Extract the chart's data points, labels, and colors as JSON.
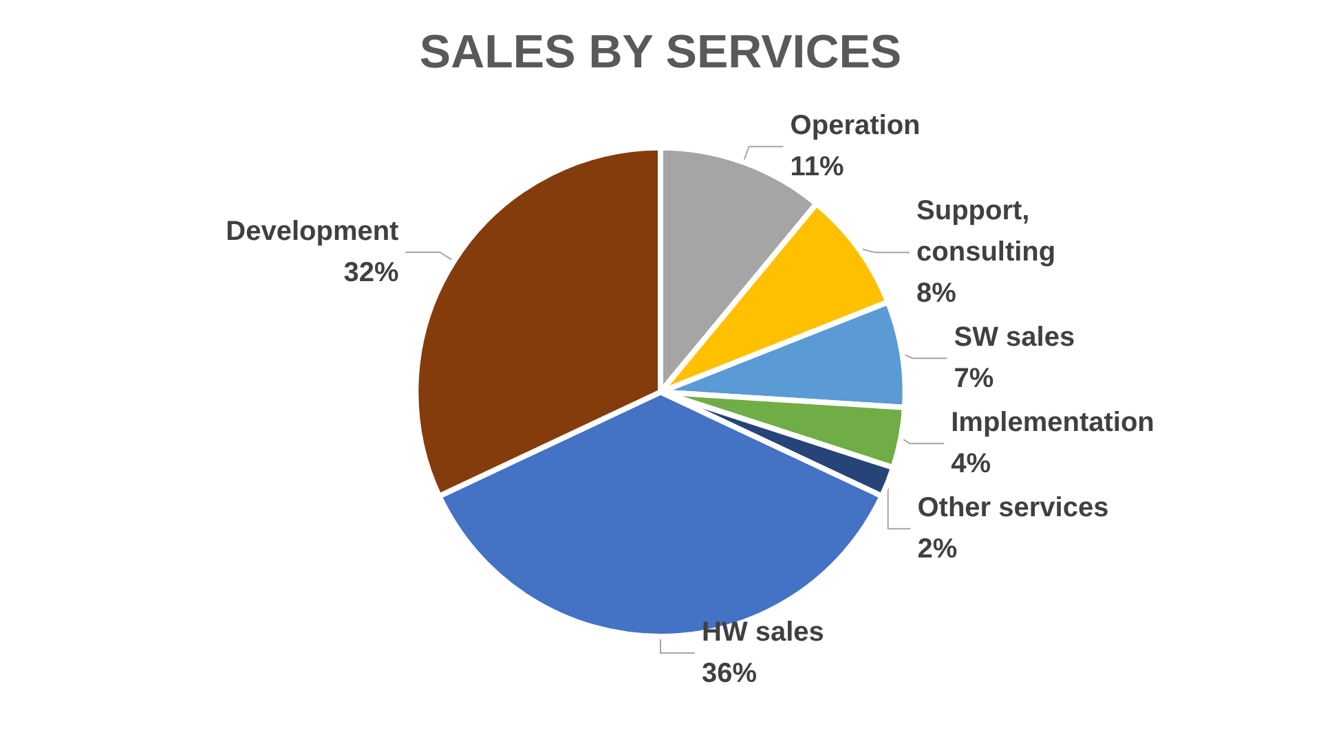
{
  "chart_data": {
    "type": "pie",
    "title": "SALES BY SERVICES",
    "categories": [
      "Operation",
      "Support, consulting",
      "SW sales",
      "Implementation",
      "Other services",
      "HW sales",
      "Development"
    ],
    "values": [
      11,
      8,
      7,
      4,
      2,
      36,
      32
    ],
    "colors": [
      "#a5a5a5",
      "#ffc000",
      "#5b9bd5",
      "#70ad47",
      "#264478",
      "#4472c4",
      "#843c0c"
    ],
    "value_labels": [
      "11%",
      "8%",
      "7%",
      "4%",
      "2%",
      "36%",
      "32%"
    ],
    "legend": false
  }
}
